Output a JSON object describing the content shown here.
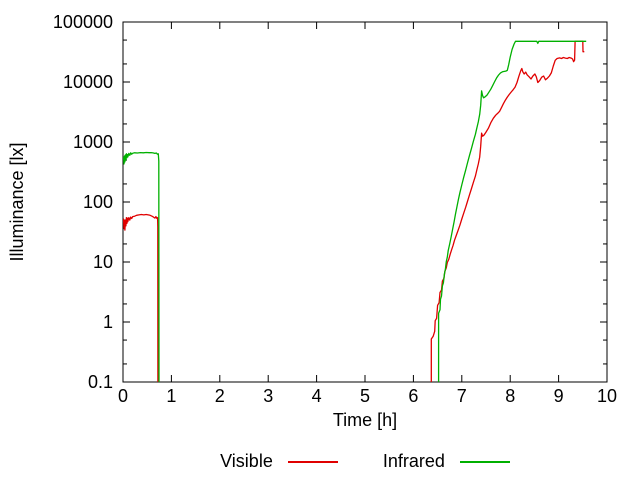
{
  "figure": {
    "background": "#ffffff",
    "axis_color": "#000000",
    "text_color": "#000000"
  },
  "chart_data": {
    "type": "line",
    "title": "",
    "xlabel": "Time [h]",
    "ylabel": "Illuminance [lx]",
    "grid": false,
    "x_axis": {
      "min": 0,
      "max": 10,
      "scale": "linear",
      "ticks": [
        0,
        1,
        2,
        3,
        4,
        5,
        6,
        7,
        8,
        9,
        10
      ],
      "tick_labels": [
        "0",
        "1",
        "2",
        "3",
        "4",
        "5",
        "6",
        "7",
        "8",
        "9",
        "10"
      ]
    },
    "y_axis": {
      "min": 0.1,
      "max": 100000,
      "scale": "log",
      "ticks": [
        0.1,
        1,
        10,
        100,
        1000,
        10000,
        100000
      ],
      "tick_labels": [
        "0.1",
        "1",
        "10",
        "100",
        "1000",
        "10000",
        "100000"
      ],
      "minor_tick_multiples": [
        2,
        5
      ]
    },
    "legend": {
      "position": "below-center",
      "entries": [
        {
          "label": "Visible",
          "color": "#e00000"
        },
        {
          "label": "Infrared",
          "color": "#00b000"
        }
      ]
    },
    "series": [
      {
        "name": "Visible",
        "color": "#e00000",
        "segments": [
          [
            [
              0.0,
              45
            ],
            [
              0.01,
              52
            ],
            [
              0.02,
              36
            ],
            [
              0.03,
              50
            ],
            [
              0.04,
              34
            ],
            [
              0.05,
              49
            ],
            [
              0.06,
              40
            ],
            [
              0.07,
              55
            ],
            [
              0.08,
              44
            ],
            [
              0.09,
              54
            ],
            [
              0.1,
              47
            ],
            [
              0.12,
              55
            ],
            [
              0.14,
              50
            ],
            [
              0.16,
              56
            ],
            [
              0.18,
              53
            ],
            [
              0.2,
              57
            ],
            [
              0.24,
              58
            ],
            [
              0.28,
              60
            ],
            [
              0.33,
              61
            ],
            [
              0.38,
              62
            ],
            [
              0.43,
              61
            ],
            [
              0.48,
              62
            ],
            [
              0.52,
              61
            ],
            [
              0.56,
              60
            ],
            [
              0.6,
              58
            ],
            [
              0.63,
              56
            ],
            [
              0.66,
              54
            ],
            [
              0.68,
              57
            ],
            [
              0.7,
              53
            ],
            [
              0.715,
              55
            ],
            [
              0.72,
              38
            ],
            [
              0.722,
              0.095
            ]
          ],
          [
            [
              6.37,
              0.095
            ],
            [
              6.37,
              0.52
            ],
            [
              6.41,
              0.58
            ],
            [
              6.44,
              0.7
            ],
            [
              6.45,
              1.05
            ],
            [
              6.48,
              1.15
            ],
            [
              6.5,
              1.9
            ],
            [
              6.53,
              2.1
            ],
            [
              6.55,
              3.1
            ],
            [
              6.58,
              3.4
            ],
            [
              6.6,
              4.8
            ],
            [
              6.63,
              5.3
            ],
            [
              6.65,
              7.0
            ],
            [
              6.68,
              8.0
            ],
            [
              6.7,
              9.8
            ],
            [
              6.73,
              11
            ],
            [
              6.76,
              13.5
            ],
            [
              6.79,
              16
            ],
            [
              6.82,
              19
            ],
            [
              6.85,
              23
            ],
            [
              6.88,
              27
            ],
            [
              6.92,
              33
            ],
            [
              6.96,
              41
            ],
            [
              7.0,
              52
            ],
            [
              7.04,
              65
            ],
            [
              7.08,
              82
            ],
            [
              7.12,
              104
            ],
            [
              7.16,
              132
            ],
            [
              7.2,
              168
            ],
            [
              7.24,
              213
            ],
            [
              7.28,
              270
            ],
            [
              7.31,
              340
            ],
            [
              7.34,
              430
            ],
            [
              7.37,
              560
            ],
            [
              7.39,
              850
            ],
            [
              7.41,
              1400
            ],
            [
              7.43,
              1250
            ],
            [
              7.46,
              1310
            ],
            [
              7.5,
              1460
            ],
            [
              7.55,
              1700
            ],
            [
              7.6,
              2100
            ],
            [
              7.65,
              2480
            ],
            [
              7.7,
              2800
            ],
            [
              7.74,
              3000
            ],
            [
              7.78,
              3250
            ],
            [
              7.82,
              3750
            ],
            [
              7.86,
              4350
            ],
            [
              7.9,
              5000
            ],
            [
              7.94,
              5600
            ],
            [
              7.98,
              6200
            ],
            [
              8.02,
              6800
            ],
            [
              8.06,
              7400
            ],
            [
              8.1,
              8200
            ],
            [
              8.14,
              9800
            ],
            [
              8.18,
              12500
            ],
            [
              8.22,
              15500
            ],
            [
              8.24,
              16800
            ],
            [
              8.26,
              14800
            ],
            [
              8.29,
              13600
            ],
            [
              8.32,
              14600
            ],
            [
              8.35,
              13200
            ],
            [
              8.39,
              12200
            ],
            [
              8.43,
              11200
            ],
            [
              8.47,
              12600
            ],
            [
              8.51,
              13600
            ],
            [
              8.54,
              12200
            ],
            [
              8.57,
              9800
            ],
            [
              8.61,
              10600
            ],
            [
              8.65,
              12000
            ],
            [
              8.69,
              12600
            ],
            [
              8.73,
              10900
            ],
            [
              8.77,
              11600
            ],
            [
              8.81,
              12600
            ],
            [
              8.85,
              14200
            ],
            [
              8.89,
              18500
            ],
            [
              8.93,
              23000
            ],
            [
              8.97,
              24600
            ],
            [
              9.02,
              25200
            ],
            [
              9.06,
              24600
            ],
            [
              9.1,
              25600
            ],
            [
              9.14,
              25000
            ],
            [
              9.18,
              24600
            ],
            [
              9.22,
              25600
            ],
            [
              9.26,
              25000
            ],
            [
              9.29,
              24200
            ],
            [
              9.31,
              21800
            ],
            [
              9.33,
              23200
            ],
            [
              9.34,
              47600
            ],
            [
              9.4,
              47600
            ],
            [
              9.5,
              47600
            ],
            [
              9.505,
              32000
            ],
            [
              9.53,
              32000
            ]
          ]
        ]
      },
      {
        "name": "Infrared",
        "color": "#00b000",
        "segments": [
          [
            [
              0.0,
              500
            ],
            [
              0.01,
              560
            ],
            [
              0.02,
              430
            ],
            [
              0.03,
              585
            ],
            [
              0.04,
              465
            ],
            [
              0.05,
              610
            ],
            [
              0.06,
              500
            ],
            [
              0.07,
              635
            ],
            [
              0.08,
              545
            ],
            [
              0.09,
              620
            ],
            [
              0.1,
              565
            ],
            [
              0.12,
              645
            ],
            [
              0.14,
              600
            ],
            [
              0.16,
              660
            ],
            [
              0.18,
              625
            ],
            [
              0.2,
              650
            ],
            [
              0.24,
              660
            ],
            [
              0.3,
              655
            ],
            [
              0.36,
              665
            ],
            [
              0.42,
              660
            ],
            [
              0.48,
              668
            ],
            [
              0.54,
              662
            ],
            [
              0.58,
              665
            ],
            [
              0.62,
              658
            ],
            [
              0.66,
              645
            ],
            [
              0.69,
              655
            ],
            [
              0.71,
              625
            ],
            [
              0.73,
              635
            ],
            [
              0.74,
              480
            ],
            [
              0.744,
              0.095
            ]
          ],
          [
            [
              6.52,
              0.095
            ],
            [
              6.52,
              1.4
            ],
            [
              6.55,
              1.6
            ],
            [
              6.56,
              2.4
            ],
            [
              6.58,
              2.7
            ],
            [
              6.6,
              4.0
            ],
            [
              6.62,
              4.5
            ],
            [
              6.64,
              6.3
            ],
            [
              6.66,
              7.4
            ],
            [
              6.68,
              10.2
            ],
            [
              6.7,
              12
            ],
            [
              6.72,
              15.5
            ],
            [
              6.75,
              20
            ],
            [
              6.78,
              26.5
            ],
            [
              6.81,
              35
            ],
            [
              6.84,
              47
            ],
            [
              6.87,
              63
            ],
            [
              6.9,
              84
            ],
            [
              6.93,
              110
            ],
            [
              6.96,
              143
            ],
            [
              7.0,
              193
            ],
            [
              7.04,
              258
            ],
            [
              7.08,
              343
            ],
            [
              7.12,
              455
            ],
            [
              7.16,
              598
            ],
            [
              7.2,
              785
            ],
            [
              7.24,
              1030
            ],
            [
              7.28,
              1345
            ],
            [
              7.31,
              1700
            ],
            [
              7.34,
              2160
            ],
            [
              7.37,
              2900
            ],
            [
              7.39,
              4100
            ],
            [
              7.41,
              7100
            ],
            [
              7.43,
              5900
            ],
            [
              7.45,
              5450
            ],
            [
              7.48,
              5650
            ],
            [
              7.52,
              6050
            ],
            [
              7.56,
              6750
            ],
            [
              7.6,
              7600
            ],
            [
              7.64,
              8800
            ],
            [
              7.68,
              10200
            ],
            [
              7.72,
              11700
            ],
            [
              7.76,
              13100
            ],
            [
              7.8,
              14200
            ],
            [
              7.84,
              14800
            ],
            [
              7.88,
              15000
            ],
            [
              7.91,
              15200
            ],
            [
              7.94,
              15600
            ],
            [
              7.97,
              19500
            ],
            [
              8.0,
              26000
            ],
            [
              8.04,
              35000
            ],
            [
              8.08,
              43000
            ],
            [
              8.11,
              47600
            ],
            [
              8.2,
              47600
            ],
            [
              8.4,
              47600
            ],
            [
              8.55,
              47600
            ],
            [
              8.57,
              44000
            ],
            [
              8.59,
              47600
            ],
            [
              8.8,
              47600
            ],
            [
              9.1,
              47600
            ],
            [
              9.4,
              47600
            ],
            [
              9.57,
              47600
            ]
          ]
        ]
      }
    ]
  }
}
